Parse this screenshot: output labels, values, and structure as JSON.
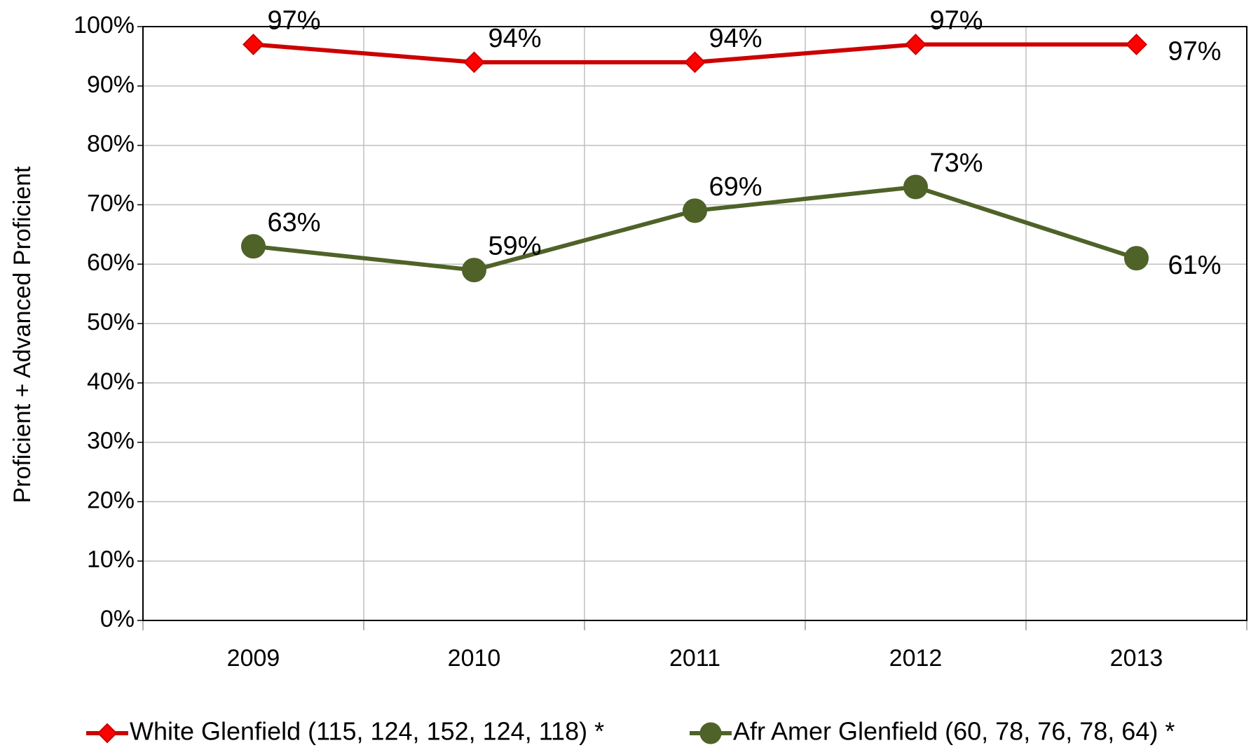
{
  "chart_data": {
    "type": "line",
    "ylabel": "Proficient + Advanced Proficient",
    "categories": [
      "2009",
      "2010",
      "2011",
      "2012",
      "2013"
    ],
    "series": [
      {
        "name": "White Glenfield (115, 124, 152, 124, 118) *",
        "color": "#cc0000",
        "marker": "diamond",
        "values": [
          97,
          94,
          94,
          97,
          97
        ],
        "value_labels": [
          "97%",
          "94%",
          "94%",
          "97%",
          "97%"
        ]
      },
      {
        "name": "Afr Amer Glenfield (60, 78, 76, 78, 64) *",
        "color": "#4f6228",
        "marker": "circle",
        "values": [
          63,
          59,
          69,
          73,
          61
        ],
        "value_labels": [
          "63%",
          "59%",
          "69%",
          "73%",
          "61%"
        ]
      }
    ],
    "ylim": [
      0,
      100
    ],
    "yticks": [
      {
        "value": 0,
        "label": "0%"
      },
      {
        "value": 10,
        "label": "10%"
      },
      {
        "value": 20,
        "label": "20%"
      },
      {
        "value": 30,
        "label": "30%"
      },
      {
        "value": 40,
        "label": "40%"
      },
      {
        "value": 50,
        "label": "50%"
      },
      {
        "value": 60,
        "label": "60%"
      },
      {
        "value": 70,
        "label": "70%"
      },
      {
        "value": 80,
        "label": "80%"
      },
      {
        "value": 90,
        "label": "90%"
      },
      {
        "value": 100,
        "label": "100%"
      }
    ],
    "grid": true,
    "legend": "bottom"
  }
}
